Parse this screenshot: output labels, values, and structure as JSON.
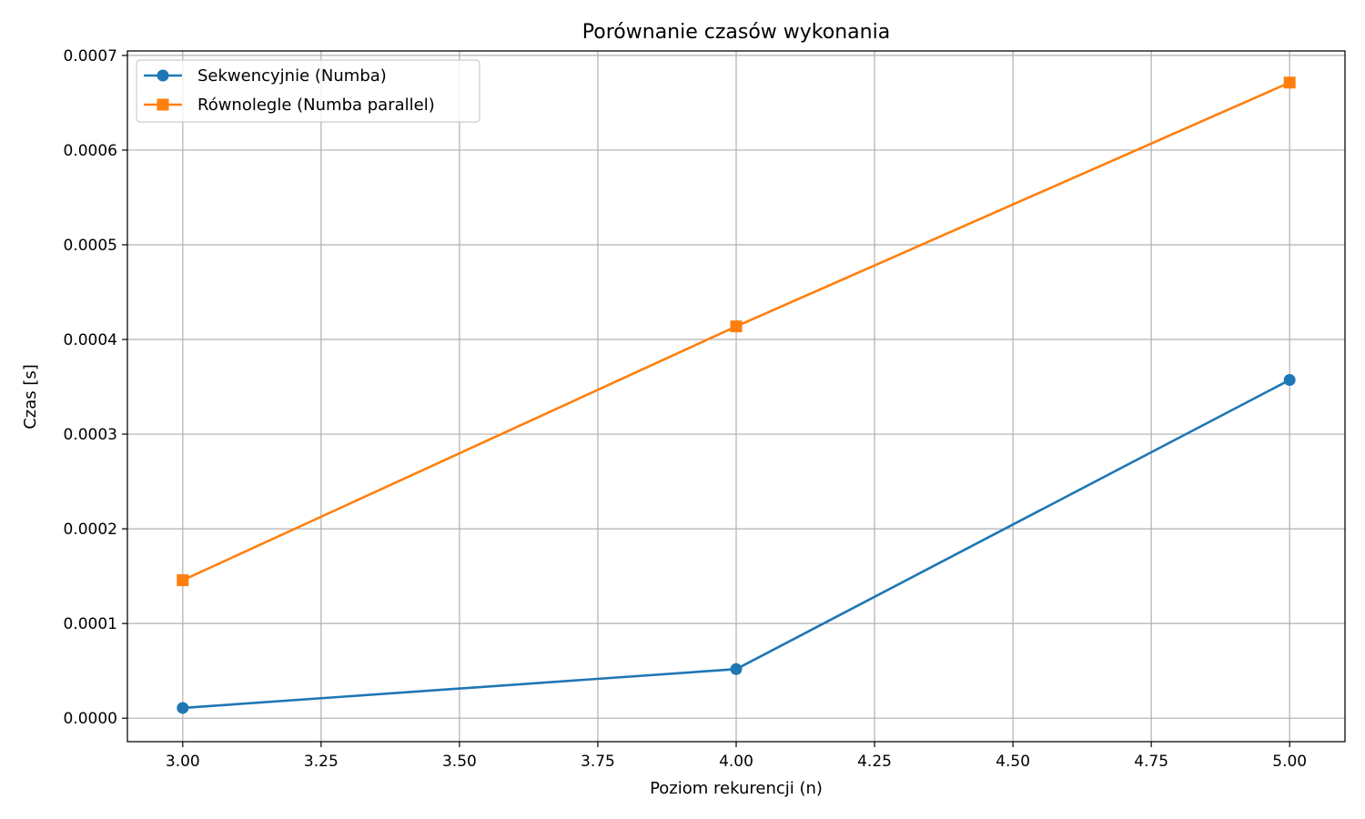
{
  "chart_data": {
    "type": "line",
    "title": "Porównanie czasów wykonania",
    "xlabel": "Poziom rekurencji (n)",
    "ylabel": "Czas [s]",
    "xlim": [
      2.9,
      5.1
    ],
    "ylim": [
      -2.48e-05,
      0.0007047
    ],
    "x_ticks": [
      3.0,
      3.25,
      3.5,
      3.75,
      4.0,
      4.25,
      4.5,
      4.75,
      5.0
    ],
    "x_tick_labels": [
      "3.00",
      "3.25",
      "3.50",
      "3.75",
      "4.00",
      "4.25",
      "4.50",
      "4.75",
      "5.00"
    ],
    "y_ticks": [
      0.0,
      0.0001,
      0.0002,
      0.0003,
      0.0004,
      0.0005,
      0.0006,
      0.0007
    ],
    "y_tick_labels": [
      "0.0000",
      "0.0001",
      "0.0002",
      "0.0003",
      "0.0004",
      "0.0005",
      "0.0006",
      "0.0007"
    ],
    "grid": true,
    "legend_position": "top-left",
    "x": [
      3,
      4,
      5
    ],
    "series": [
      {
        "name": "Sekwencyjnie (Numba)",
        "values": [
          1.08e-05,
          5.18e-05,
          0.0003572
        ],
        "color": "#1f77b4",
        "marker": "circle"
      },
      {
        "name": "Równolegle (Numba parallel)",
        "values": [
          0.0001457,
          0.0004138,
          0.0006713
        ],
        "color": "#ff7f0e",
        "marker": "square"
      }
    ]
  }
}
